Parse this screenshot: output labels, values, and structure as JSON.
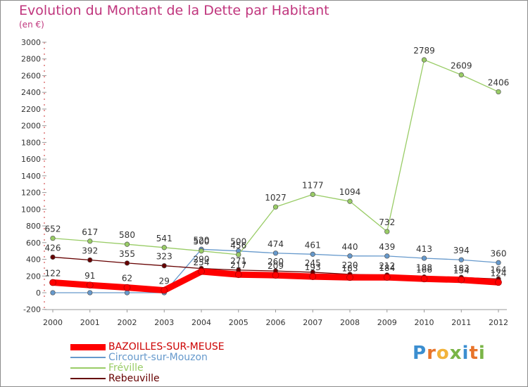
{
  "chart_data": {
    "type": "line",
    "title": "Evolution du Montant de la Dette par Habitant",
    "subtitle": "(en €)",
    "x": [
      "2000",
      "2001",
      "2002",
      "2003",
      "2004",
      "2005",
      "2006",
      "2007",
      "2008",
      "2009",
      "2010",
      "2011",
      "2012"
    ],
    "ylim": [
      -200,
      3000
    ],
    "yticks": [
      -200,
      0,
      200,
      400,
      600,
      800,
      1000,
      1200,
      1400,
      1600,
      1800,
      2000,
      2200,
      2400,
      2600,
      2800,
      3000
    ],
    "grid": false,
    "legend_position": "bottom-left",
    "series": [
      {
        "name": "BAZOILLES-SUR-MEUSE",
        "color": "#ff0000",
        "emphasis": true,
        "values": [
          122,
          91,
          62,
          29,
          254,
          217,
          209,
          193,
          183,
          184,
          166,
          154,
          124
        ]
      },
      {
        "name": "Circourt-sur-Mouzon",
        "color": "#6699cc",
        "emphasis": false,
        "values": [
          0,
          0,
          0,
          0,
          520,
          500,
          474,
          461,
          440,
          439,
          413,
          394,
          360
        ]
      },
      {
        "name": "Fréville",
        "color": "#99cc66",
        "emphasis": false,
        "values": [
          652,
          617,
          580,
          541,
          500,
          456,
          1027,
          1177,
          1094,
          732,
          2789,
          2609,
          2406
        ]
      },
      {
        "name": "Rebeuville",
        "color": "#660000",
        "emphasis": false,
        "values": [
          426,
          392,
          355,
          323,
          290,
          271,
          260,
          245,
          220,
          212,
          188,
          183,
          164
        ]
      }
    ],
    "data_labels": [
      {
        "series": 0,
        "values": [
          "122",
          "91",
          "62",
          "29",
          "254",
          "217",
          "209",
          "193",
          "183",
          "184",
          "166",
          "154",
          "124"
        ]
      },
      {
        "series": 1,
        "values": [
          "",
          "",
          "",
          "",
          "520",
          "500",
          "474",
          "461",
          "440",
          "439",
          "413",
          "394",
          "360"
        ]
      },
      {
        "series": 2,
        "values": [
          "652",
          "617",
          "580",
          "541",
          "500",
          "456",
          "1027",
          "1177",
          "1094",
          "732",
          "2789",
          "2609",
          "2406"
        ]
      },
      {
        "series": 3,
        "values": [
          "426",
          "392",
          "355",
          "323",
          "290",
          "271",
          "260",
          "245",
          "220",
          "212",
          "188",
          "183",
          "164"
        ]
      }
    ]
  },
  "logo": {
    "text": "Proxiti",
    "letter_colors": [
      "#3b8ed0",
      "#e8742a",
      "#f2b33a",
      "#7ab547",
      "#3b8ed0",
      "#e8742a",
      "#7ab547"
    ]
  }
}
